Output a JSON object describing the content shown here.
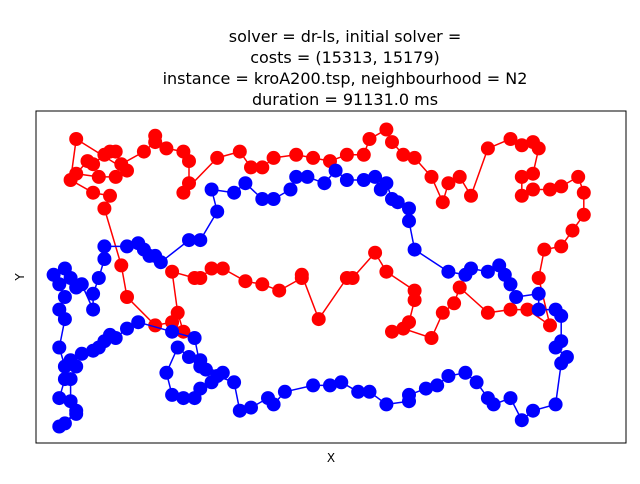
{
  "chart_data": {
    "type": "scatter",
    "title_lines": [
      "solver = dr-ls, initial solver = ",
      "costs = (15313, 15179)",
      "instance = kroA200.tsp, neighbourhood = N2",
      "duration = 91131.0 ms"
    ],
    "xlabel": "X",
    "ylabel": "Y",
    "xlim": [
      0,
      100
    ],
    "ylim": [
      0,
      100
    ],
    "grid": false,
    "series": [
      {
        "color": "#ff0000",
        "closed": true,
        "points": [
          [
            5,
            94
          ],
          [
            4,
            81
          ],
          [
            8,
            77
          ],
          [
            11,
            76
          ],
          [
            10,
            72
          ],
          [
            13,
            54
          ],
          [
            14,
            44
          ],
          [
            19,
            35
          ],
          [
            22,
            36
          ],
          [
            24,
            33
          ],
          [
            23,
            39
          ],
          [
            22,
            52
          ],
          [
            26,
            50
          ],
          [
            27,
            50
          ],
          [
            29,
            53
          ],
          [
            31,
            53
          ],
          [
            35,
            49
          ],
          [
            38,
            48
          ],
          [
            41,
            46
          ],
          [
            45,
            50
          ],
          [
            45,
            51
          ],
          [
            48,
            37
          ],
          [
            53,
            50
          ],
          [
            54,
            50
          ],
          [
            58,
            58
          ],
          [
            60,
            52
          ],
          [
            65,
            46
          ],
          [
            65,
            43
          ],
          [
            64,
            36
          ],
          [
            61,
            33
          ],
          [
            63,
            34
          ],
          [
            68,
            31
          ],
          [
            70,
            39
          ],
          [
            72,
            42
          ],
          [
            73,
            47
          ],
          [
            78,
            39
          ],
          [
            82,
            40
          ],
          [
            85,
            40
          ],
          [
            89,
            35
          ],
          [
            87,
            50
          ],
          [
            88,
            59
          ],
          [
            91,
            60
          ],
          [
            93,
            65
          ],
          [
            95,
            70
          ],
          [
            95,
            77
          ],
          [
            94,
            82
          ],
          [
            91,
            79
          ],
          [
            89,
            78
          ],
          [
            86,
            78
          ],
          [
            84,
            76
          ],
          [
            84,
            82
          ],
          [
            86,
            83
          ],
          [
            87,
            91
          ],
          [
            86,
            93
          ],
          [
            84,
            92
          ],
          [
            82,
            94
          ],
          [
            78,
            91
          ],
          [
            75,
            76
          ],
          [
            73,
            82
          ],
          [
            71,
            80
          ],
          [
            70,
            74
          ],
          [
            68,
            82
          ],
          [
            65,
            88
          ],
          [
            63,
            89
          ],
          [
            61,
            93
          ],
          [
            60,
            97
          ],
          [
            57,
            94
          ],
          [
            56,
            89
          ],
          [
            53,
            89
          ],
          [
            50,
            87
          ],
          [
            47,
            88
          ],
          [
            44,
            89
          ],
          [
            40,
            88
          ],
          [
            38,
            85
          ],
          [
            36,
            85
          ],
          [
            34,
            90
          ],
          [
            30,
            88
          ],
          [
            24,
            77
          ],
          [
            25,
            80
          ],
          [
            25,
            87
          ],
          [
            24,
            90
          ],
          [
            21,
            91
          ],
          [
            19,
            95
          ],
          [
            19,
            93
          ],
          [
            17,
            90
          ],
          [
            13,
            86
          ],
          [
            12,
            90
          ],
          [
            11,
            90
          ],
          [
            10,
            89
          ],
          [
            8,
            86
          ],
          [
            7,
            87
          ],
          [
            5,
            83
          ],
          [
            9,
            82
          ],
          [
            12,
            82
          ],
          [
            14,
            84
          ]
        ]
      },
      {
        "color": "#0000ff",
        "closed": true,
        "points": [
          [
            5,
            47
          ],
          [
            6,
            48
          ],
          [
            8,
            40
          ],
          [
            8,
            45
          ],
          [
            9,
            50
          ],
          [
            10,
            56
          ],
          [
            10,
            60
          ],
          [
            14,
            60
          ],
          [
            16,
            61
          ],
          [
            17,
            59
          ],
          [
            19,
            57
          ],
          [
            18,
            57
          ],
          [
            20,
            55
          ],
          [
            25,
            62
          ],
          [
            27,
            62
          ],
          [
            30,
            71
          ],
          [
            29,
            78
          ],
          [
            33,
            77
          ],
          [
            35,
            80
          ],
          [
            38,
            75
          ],
          [
            40,
            75
          ],
          [
            43,
            78
          ],
          [
            44,
            82
          ],
          [
            46,
            82
          ],
          [
            49,
            80
          ],
          [
            51,
            84
          ],
          [
            53,
            81
          ],
          [
            56,
            81
          ],
          [
            58,
            82
          ],
          [
            59,
            78
          ],
          [
            60,
            80
          ],
          [
            61,
            75
          ],
          [
            62,
            74
          ],
          [
            64,
            72
          ],
          [
            64,
            68
          ],
          [
            65,
            59
          ],
          [
            71,
            52
          ],
          [
            74,
            51
          ],
          [
            75,
            53
          ],
          [
            78,
            52
          ],
          [
            80,
            54
          ],
          [
            81,
            51
          ],
          [
            82,
            48
          ],
          [
            83,
            44
          ],
          [
            87,
            45
          ],
          [
            87,
            40
          ],
          [
            90,
            40
          ],
          [
            91,
            38
          ],
          [
            91,
            30
          ],
          [
            90,
            28
          ],
          [
            92,
            25
          ],
          [
            91,
            23
          ],
          [
            90,
            10
          ],
          [
            86,
            8
          ],
          [
            84,
            5
          ],
          [
            82,
            12
          ],
          [
            79,
            10
          ],
          [
            78,
            12
          ],
          [
            76,
            17
          ],
          [
            74,
            20
          ],
          [
            71,
            19
          ],
          [
            69,
            16
          ],
          [
            67,
            15
          ],
          [
            64,
            13
          ],
          [
            64,
            11
          ],
          [
            60,
            10
          ],
          [
            57,
            14
          ],
          [
            55,
            14
          ],
          [
            52,
            17
          ],
          [
            50,
            16
          ],
          [
            47,
            16
          ],
          [
            42,
            14
          ],
          [
            40,
            10
          ],
          [
            39,
            12
          ],
          [
            36,
            9
          ],
          [
            34,
            8
          ],
          [
            33,
            17
          ],
          [
            30,
            19
          ],
          [
            28,
            21
          ],
          [
            27,
            24
          ],
          [
            25,
            25
          ],
          [
            23,
            28
          ],
          [
            21,
            20
          ],
          [
            22,
            13
          ],
          [
            24,
            12
          ],
          [
            26,
            12
          ],
          [
            27,
            15
          ],
          [
            29,
            17
          ],
          [
            31,
            20
          ],
          [
            27,
            22
          ],
          [
            26,
            31
          ],
          [
            22,
            33
          ],
          [
            16,
            36
          ],
          [
            14,
            34
          ],
          [
            12,
            31
          ],
          [
            11,
            32
          ],
          [
            10,
            30
          ],
          [
            9,
            28
          ],
          [
            8,
            27
          ],
          [
            6,
            26
          ],
          [
            4,
            24
          ],
          [
            5,
            22
          ],
          [
            4,
            18
          ],
          [
            4,
            11
          ],
          [
            5,
            7
          ],
          [
            2,
            3
          ],
          [
            3,
            4
          ],
          [
            5,
            8
          ],
          [
            2,
            12
          ],
          [
            3,
            18
          ],
          [
            3,
            22
          ],
          [
            2,
            28
          ],
          [
            3,
            37
          ],
          [
            2,
            40
          ],
          [
            3,
            44
          ],
          [
            2,
            48
          ],
          [
            1,
            51
          ],
          [
            3,
            53
          ],
          [
            4,
            50
          ]
        ]
      }
    ]
  }
}
